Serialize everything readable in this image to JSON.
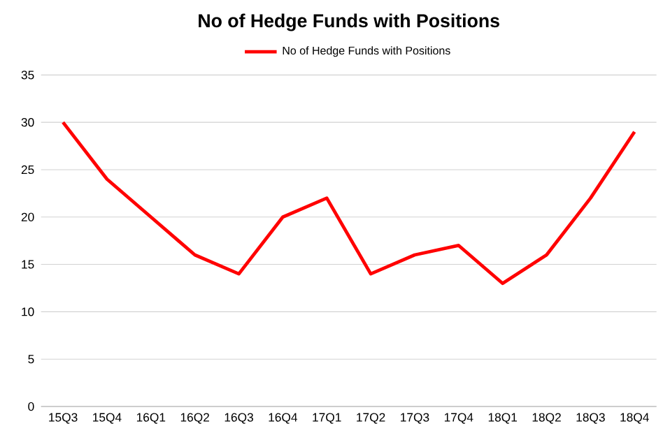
{
  "chart_data": {
    "type": "line",
    "title": "No of Hedge Funds with Positions",
    "categories": [
      "15Q3",
      "15Q4",
      "16Q1",
      "16Q2",
      "16Q3",
      "16Q4",
      "17Q1",
      "17Q2",
      "17Q3",
      "17Q4",
      "18Q1",
      "18Q2",
      "18Q3",
      "18Q4"
    ],
    "series": [
      {
        "name": "No of Hedge Funds with Positions",
        "color": "#ff0000",
        "values": [
          30,
          24,
          20,
          16,
          14,
          20,
          22,
          14,
          16,
          17,
          13,
          16,
          22,
          29
        ]
      }
    ],
    "ylim": [
      0,
      35
    ],
    "yticks": [
      0,
      5,
      10,
      15,
      20,
      25,
      30,
      35
    ],
    "grid": "y",
    "legend": "top",
    "marker": "none",
    "line_style": "solid"
  }
}
